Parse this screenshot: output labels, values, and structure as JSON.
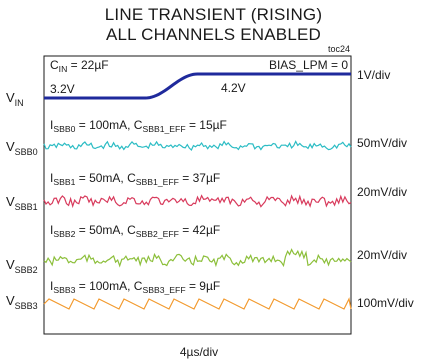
{
  "title_line1": "LINE TRANSIENT (RISING)",
  "title_line2": "ALL CHANNELS ENABLED",
  "figure_tag": "toc24",
  "chart_data": {
    "type": "line",
    "title": "LINE TRANSIENT (RISING) ALL CHANNELS ENABLED",
    "xlabel": "4µs/div",
    "x_divisions": 10,
    "y_divisions": 8,
    "grid": false,
    "annotations": {
      "cin": {
        "main": "C",
        "sub": "IN",
        "rest": " = 22µF"
      },
      "bias": "BIAS_LPM = 0",
      "v_before": "3.2V",
      "v_after": "4.2V"
    },
    "series": [
      {
        "name": "V_IN",
        "label_main": "V",
        "label_sub": "IN",
        "scale": "1V/div",
        "color": "#1f2a9c",
        "kind": "step",
        "start_value": "3.2V",
        "end_value": "4.2V",
        "step_start_div": 3.3,
        "step_end_div": 5.0,
        "info": null
      },
      {
        "name": "V_SBB0",
        "label_main": "V",
        "label_sub": "SBB0",
        "scale": "50mV/div",
        "color": "#2bbcc4",
        "kind": "noise",
        "info": [
          {
            "main": "I",
            "sub": "SBB0",
            "rest": " = 100mA, "
          },
          {
            "main": "C",
            "sub": "SBB1_EFF",
            "rest": " = 15µF"
          }
        ]
      },
      {
        "name": "V_SBB1",
        "label_main": "V",
        "label_sub": "SBB1",
        "scale": "20mV/div",
        "color": "#d83a5c",
        "kind": "noise",
        "info": [
          {
            "main": "I",
            "sub": "SBB1",
            "rest": " = 50mA, "
          },
          {
            "main": "C",
            "sub": "SBB1_EFF",
            "rest": " = 37µF"
          }
        ]
      },
      {
        "name": "V_SBB2",
        "label_main": "V",
        "label_sub": "SBB2",
        "scale": "20mV/div",
        "color": "#8cbf3a",
        "kind": "noise",
        "info": [
          {
            "main": "I",
            "sub": "SBB2",
            "rest": " = 50mA, "
          },
          {
            "main": "C",
            "sub": "SBB2_EFF",
            "rest": " = 42µF"
          }
        ]
      },
      {
        "name": "V_SBB3",
        "label_main": "V",
        "label_sub": "SBB3",
        "scale": "100mV/div",
        "color": "#f39a2e",
        "kind": "sawtooth",
        "info": [
          {
            "main": "I",
            "sub": "SBB3",
            "rest": " = 100mA, "
          },
          {
            "main": "C",
            "sub": "SBB3_EFF",
            "rest": " = 9µF"
          }
        ]
      }
    ]
  }
}
